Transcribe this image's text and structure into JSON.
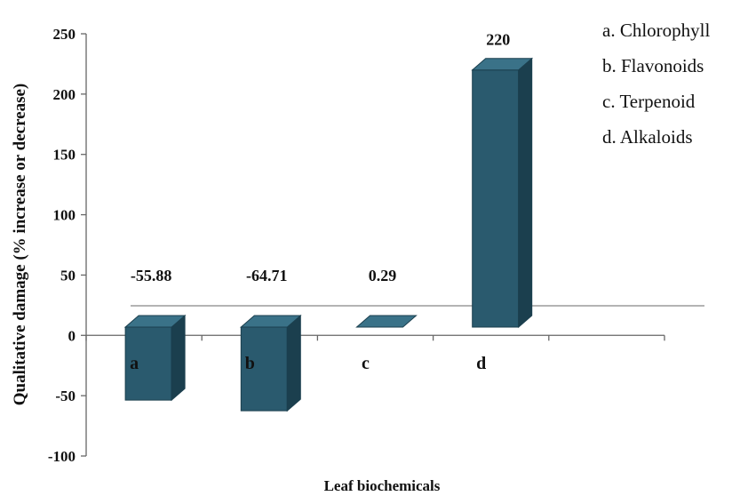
{
  "chart_data": {
    "type": "bar",
    "title": "",
    "xlabel": "Leaf biochemicals",
    "ylabel": "Qualitative   damage (% increase or decrease)",
    "ylim": [
      -100,
      250
    ],
    "yticks": [
      "-100",
      "-50",
      "0",
      "50",
      "100",
      "150",
      "200",
      "250"
    ],
    "categories": [
      "a",
      "b",
      "c",
      "d"
    ],
    "values": [
      -55.88,
      -64.71,
      0.29,
      220
    ],
    "data_labels": [
      "-55.88",
      "-64.71",
      "0.29",
      "220"
    ],
    "bar_color": "#2a5a6e",
    "legend": [
      "a. Chlorophyll",
      "b.  Flavonoids",
      "c.  Terpenoid",
      "d. Alkaloids"
    ],
    "legend_position": "top-right",
    "grid": false
  }
}
